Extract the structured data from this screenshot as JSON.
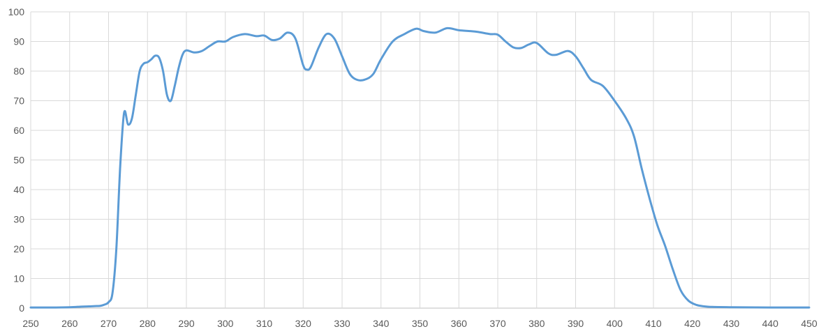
{
  "chart_data": {
    "type": "line",
    "title": "",
    "xlabel": "",
    "ylabel": "",
    "xlim": [
      250,
      450
    ],
    "ylim": [
      0,
      100
    ],
    "x_ticks": [
      "250",
      "260",
      "270",
      "280",
      "290",
      "300",
      "310",
      "320",
      "330",
      "340",
      "350",
      "360",
      "370",
      "380",
      "390",
      "400",
      "410",
      "420",
      "430",
      "440",
      "450"
    ],
    "y_ticks": [
      "0",
      "10",
      "20",
      "30",
      "40",
      "50",
      "60",
      "70",
      "80",
      "90",
      "100"
    ],
    "grid": true,
    "legend": "none",
    "series": [
      {
        "color": "#5b9bd5",
        "points": [
          [
            250,
            0.2
          ],
          [
            255,
            0.2
          ],
          [
            260,
            0.3
          ],
          [
            263,
            0.5
          ],
          [
            265,
            0.6
          ],
          [
            267,
            0.7
          ],
          [
            268,
            0.8
          ],
          [
            269,
            1.2
          ],
          [
            270,
            2.0
          ],
          [
            271,
            5
          ],
          [
            272,
            20
          ],
          [
            273,
            48
          ],
          [
            274,
            66
          ],
          [
            275,
            62
          ],
          [
            276,
            64
          ],
          [
            277,
            72
          ],
          [
            278,
            80
          ],
          [
            279,
            82.5
          ],
          [
            280,
            83
          ],
          [
            281,
            84
          ],
          [
            282,
            85.2
          ],
          [
            283,
            84.5
          ],
          [
            284,
            80
          ],
          [
            285,
            72
          ],
          [
            286,
            70
          ],
          [
            287,
            75
          ],
          [
            288,
            81
          ],
          [
            289,
            85.5
          ],
          [
            290,
            87
          ],
          [
            292,
            86.3
          ],
          [
            294,
            86.8
          ],
          [
            296,
            88.5
          ],
          [
            298,
            90
          ],
          [
            300,
            90
          ],
          [
            302,
            91.5
          ],
          [
            305,
            92.5
          ],
          [
            308,
            91.8
          ],
          [
            310,
            92
          ],
          [
            312,
            90.5
          ],
          [
            314,
            91
          ],
          [
            316,
            93
          ],
          [
            318,
            91
          ],
          [
            320,
            82
          ],
          [
            321,
            80.5
          ],
          [
            322,
            81.5
          ],
          [
            324,
            88
          ],
          [
            326,
            92.5
          ],
          [
            328,
            91
          ],
          [
            330,
            85
          ],
          [
            332,
            79
          ],
          [
            334,
            77
          ],
          [
            336,
            77.2
          ],
          [
            338,
            79
          ],
          [
            340,
            84
          ],
          [
            343,
            90
          ],
          [
            346,
            92.5
          ],
          [
            349,
            94.3
          ],
          [
            351,
            93.5
          ],
          [
            354,
            93
          ],
          [
            357,
            94.5
          ],
          [
            360,
            93.8
          ],
          [
            363,
            93.5
          ],
          [
            365,
            93.2
          ],
          [
            368,
            92.5
          ],
          [
            370,
            92.3
          ],
          [
            372,
            90
          ],
          [
            374,
            88
          ],
          [
            376,
            87.8
          ],
          [
            378,
            89
          ],
          [
            380,
            89.5
          ],
          [
            383,
            86
          ],
          [
            385,
            85.5
          ],
          [
            388,
            86.8
          ],
          [
            390,
            85
          ],
          [
            392,
            81
          ],
          [
            394,
            77
          ],
          [
            397,
            75
          ],
          [
            400,
            70
          ],
          [
            403,
            64
          ],
          [
            405,
            58
          ],
          [
            407,
            47
          ],
          [
            409,
            37
          ],
          [
            411,
            28
          ],
          [
            413,
            21
          ],
          [
            415,
            13
          ],
          [
            417,
            6
          ],
          [
            419,
            2.5
          ],
          [
            421,
            1.1
          ],
          [
            423,
            0.6
          ],
          [
            425,
            0.4
          ],
          [
            430,
            0.3
          ],
          [
            440,
            0.2
          ],
          [
            450,
            0.2
          ]
        ]
      }
    ]
  }
}
